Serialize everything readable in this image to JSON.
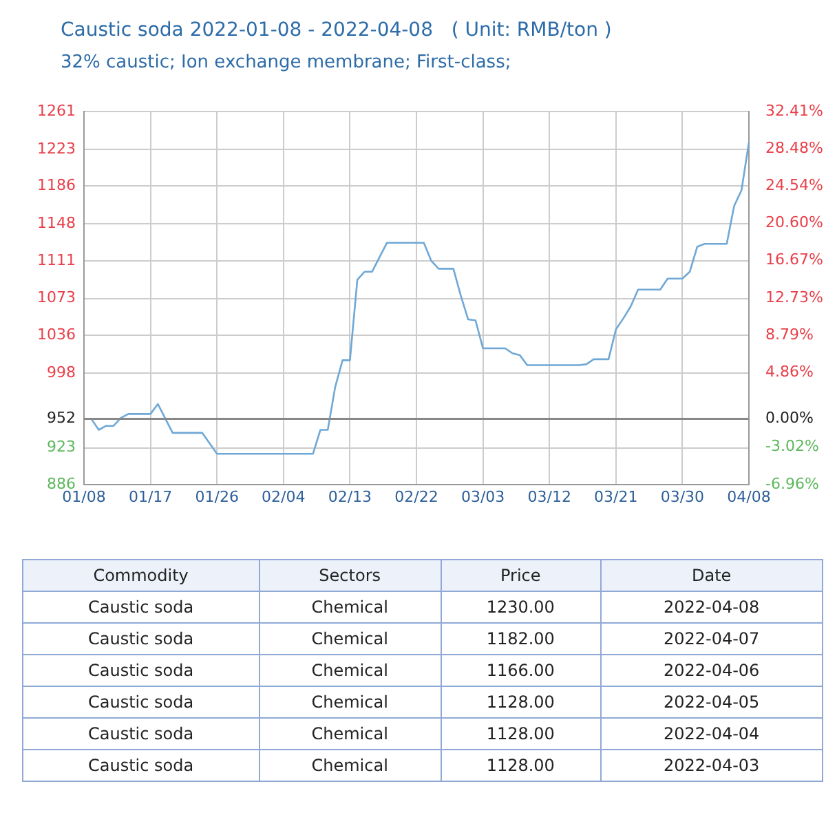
{
  "chart_data": [
    {
      "type": "line",
      "title": "Caustic soda 2022-01-08 - 2022-04-08   ( Unit: RMB/ton )",
      "subtitle": "32% caustic; Ion exchange membrane; First-class;",
      "x": [
        "2022-01-08",
        "2022-01-09",
        "2022-01-10",
        "2022-01-11",
        "2022-01-12",
        "2022-01-13",
        "2022-01-14",
        "2022-01-17",
        "2022-01-18",
        "2022-01-20",
        "2022-01-24",
        "2022-01-26",
        "2022-02-08",
        "2022-02-09",
        "2022-02-10",
        "2022-02-11",
        "2022-02-12",
        "2022-02-13",
        "2022-02-14",
        "2022-02-15",
        "2022-02-16",
        "2022-02-18",
        "2022-02-23",
        "2022-02-24",
        "2022-02-25",
        "2022-02-27",
        "2022-02-28",
        "2022-03-01",
        "2022-03-02",
        "2022-03-03",
        "2022-03-06",
        "2022-03-07",
        "2022-03-08",
        "2022-03-09",
        "2022-03-16",
        "2022-03-17",
        "2022-03-18",
        "2022-03-20",
        "2022-03-21",
        "2022-03-22",
        "2022-03-23",
        "2022-03-24",
        "2022-03-27",
        "2022-03-28",
        "2022-03-30",
        "2022-03-31",
        "2022-04-01",
        "2022-04-02",
        "2022-04-05",
        "2022-04-06",
        "2022-04-07",
        "2022-04-08"
      ],
      "series": [
        {
          "color": "#6fa8d6",
          "values": [
            952,
            952,
            941,
            945,
            945,
            953,
            957,
            957,
            967,
            938,
            938,
            917,
            917,
            941,
            941,
            984,
            1011,
            1011,
            1092,
            1100,
            1100,
            1129,
            1129,
            1111,
            1103,
            1103,
            1076,
            1052,
            1051,
            1023,
            1023,
            1018,
            1016,
            1006,
            1006,
            1007,
            1012,
            1012,
            1042,
            1053,
            1065,
            1082,
            1082,
            1093,
            1093,
            1100,
            1125,
            1128,
            1128,
            1166,
            1182,
            1230
          ]
        }
      ],
      "xlim": [
        "2022-01-08",
        "2022-04-08"
      ],
      "xticks": [
        {
          "value": "2022-01-08",
          "label": "01/08"
        },
        {
          "value": "2022-01-17",
          "label": "01/17"
        },
        {
          "value": "2022-01-26",
          "label": "01/26"
        },
        {
          "value": "2022-02-04",
          "label": "02/04"
        },
        {
          "value": "2022-02-13",
          "label": "02/13"
        },
        {
          "value": "2022-02-22",
          "label": "02/22"
        },
        {
          "value": "2022-03-03",
          "label": "03/03"
        },
        {
          "value": "2022-03-12",
          "label": "03/12"
        },
        {
          "value": "2022-03-21",
          "label": "03/21"
        },
        {
          "value": "2022-03-30",
          "label": "03/30"
        },
        {
          "value": "2022-04-08",
          "label": "04/08"
        }
      ],
      "ylim": [
        886,
        1261
      ],
      "yticks": [
        886,
        923,
        952,
        998,
        1036,
        1073,
        1111,
        1148,
        1186,
        1223,
        1261
      ],
      "y2lim": [
        -6.96,
        32.41
      ],
      "y2ticks": [
        {
          "value": -6.96,
          "label": "-6.96%"
        },
        {
          "value": -3.02,
          "label": "-3.02%"
        },
        {
          "value": 0,
          "label": "0.00%"
        },
        {
          "value": 4.86,
          "label": "4.86%"
        },
        {
          "value": 8.79,
          "label": "8.79%"
        },
        {
          "value": 12.73,
          "label": "12.73%"
        },
        {
          "value": 16.67,
          "label": "16.67%"
        },
        {
          "value": 20.6,
          "label": "20.60%"
        },
        {
          "value": 24.54,
          "label": "24.54%"
        },
        {
          "value": 28.48,
          "label": "28.48%"
        },
        {
          "value": 32.41,
          "label": "32.41%"
        }
      ],
      "ref_lines": [
        {
          "axis": "y",
          "value": 952,
          "color": "#888888"
        }
      ],
      "grid": true,
      "legend": false,
      "marker": "none",
      "line_style": "solid"
    },
    {
      "type": "other",
      "categories": [
        "Commodity",
        "Sectors",
        "Price",
        "Date"
      ],
      "annotations": [
        "Caustic soda",
        "Chemical",
        "1230.00",
        "2022-04-08",
        "Caustic soda",
        "Chemical",
        "1182.00",
        "2022-04-07",
        "Caustic soda",
        "Chemical",
        "1166.00",
        "2022-04-06",
        "Caustic soda",
        "Chemical",
        "1128.00",
        "2022-04-05",
        "Caustic soda",
        "Chemical",
        "1128.00",
        "2022-04-04",
        "Caustic soda",
        "Chemical",
        "1128.00",
        "2022-04-03"
      ]
    }
  ]
}
